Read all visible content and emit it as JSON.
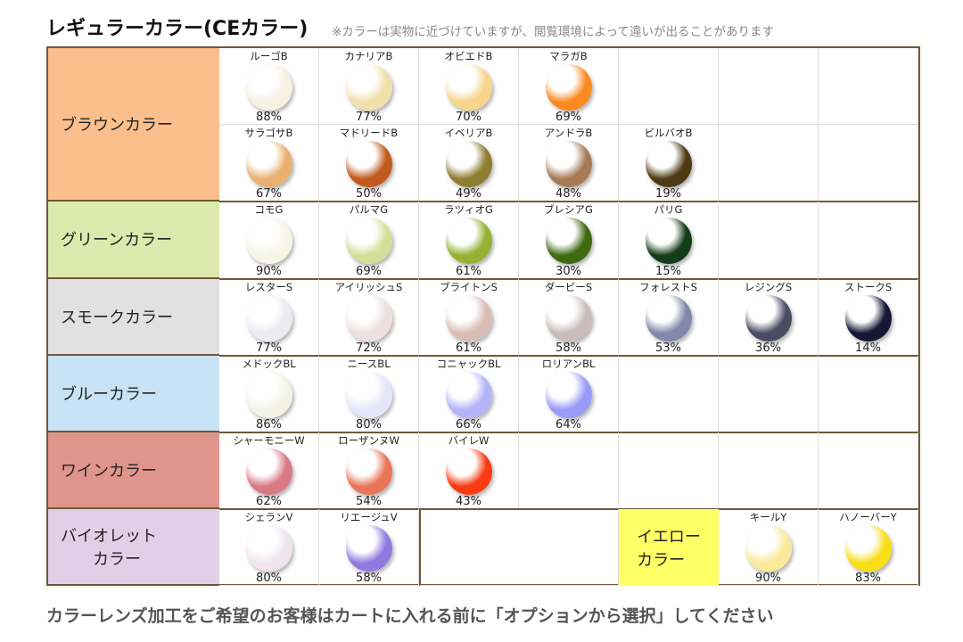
{
  "title": "レギュラーカラー(CEカラー)",
  "note": "※カラーは実物に近づけていますが、閲覧環境によって違いが出ることがあります",
  "footer": "カラーレンズ加工をご希望のお客様はカートに入れる前に「オプションから選択」してください",
  "categories": [
    {
      "label": "ブラウンカラー",
      "bg": "#fbbf8d",
      "rows": [
        [
          {
            "name": "ルーゴB",
            "pct": "88%",
            "color": "#f8f0e0"
          },
          {
            "name": "カナリアB",
            "pct": "77%",
            "color": "#f2e0aa"
          },
          {
            "name": "オビエドB",
            "pct": "70%",
            "color": "#f7d58a"
          },
          {
            "name": "マラガB",
            "pct": "69%",
            "color": "#fb8a1e"
          }
        ],
        [
          {
            "name": "サラゴサB",
            "pct": "67%",
            "color": "#eab071"
          },
          {
            "name": "マドリードB",
            "pct": "50%",
            "color": "#c15a1c"
          },
          {
            "name": "イベリアB",
            "pct": "49%",
            "color": "#8f7d32"
          },
          {
            "name": "アンドラB",
            "pct": "48%",
            "color": "#a77b57"
          },
          {
            "name": "ビルバオB",
            "pct": "19%",
            "color": "#4e3b14"
          }
        ]
      ]
    },
    {
      "label": "グリーンカラー",
      "bg": "#dde9ad",
      "rows": [
        [
          {
            "name": "コモG",
            "pct": "90%",
            "color": "#f7f5e6"
          },
          {
            "name": "パルマG",
            "pct": "69%",
            "color": "#d3df98"
          },
          {
            "name": "ラツィオG",
            "pct": "61%",
            "color": "#97b032"
          },
          {
            "name": "ブレシアG",
            "pct": "30%",
            "color": "#3f6a12"
          },
          {
            "name": "パリG",
            "pct": "15%",
            "color": "#123d16"
          }
        ]
      ]
    },
    {
      "label": "スモークカラー",
      "bg": "#e1e1e1",
      "rows": [
        [
          {
            "name": "レスターS",
            "pct": "77%",
            "color": "#eceaf2"
          },
          {
            "name": "アイリッシュS",
            "pct": "72%",
            "color": "#eee0e0"
          },
          {
            "name": "ブライトンS",
            "pct": "61%",
            "color": "#d9bdb5"
          },
          {
            "name": "ダービーS",
            "pct": "58%",
            "color": "#cbbcbc"
          },
          {
            "name": "フォレストS",
            "pct": "53%",
            "color": "#8189aa"
          },
          {
            "name": "レジングS",
            "pct": "36%",
            "color": "#4a4d62"
          },
          {
            "name": "ストークS",
            "pct": "14%",
            "color": "#151735"
          }
        ]
      ]
    },
    {
      "label": "ブルーカラー",
      "bg": "#c8e3f5",
      "rows": [
        [
          {
            "name": "メドックBL",
            "pct": "86%",
            "color": "#f3f3e5"
          },
          {
            "name": "ニースBL",
            "pct": "80%",
            "color": "#e5e6fa"
          },
          {
            "name": "コニャックBL",
            "pct": "66%",
            "color": "#b4b2fb"
          },
          {
            "name": "ロリアンBL",
            "pct": "64%",
            "color": "#9a9af9"
          }
        ]
      ]
    },
    {
      "label": "ワインカラー",
      "bg": "#e0958c",
      "rows": [
        [
          {
            "name": "シャーモニーW",
            "pct": "62%",
            "color": "#d97983"
          },
          {
            "name": "ローザンヌW",
            "pct": "54%",
            "color": "#e97458"
          },
          {
            "name": "バイレW",
            "pct": "43%",
            "color": "#f83b12"
          }
        ]
      ]
    },
    {
      "label": "バイオレット\n　　カラー",
      "bg": "#e1cfe7",
      "rows": [
        [
          {
            "name": "シェランV",
            "pct": "80%",
            "color": "#f1e4ef"
          },
          {
            "name": "リエージュV",
            "pct": "58%",
            "color": "#8f7be0"
          }
        ]
      ]
    }
  ],
  "yellow": {
    "label": "イエロー\nカラー",
    "bg": "#ffff66",
    "lenses": [
      {
        "name": "キールY",
        "pct": "90%",
        "color": "#fbe99a"
      },
      {
        "name": "ハノーバーY",
        "pct": "83%",
        "color": "#f8de14"
      }
    ]
  }
}
